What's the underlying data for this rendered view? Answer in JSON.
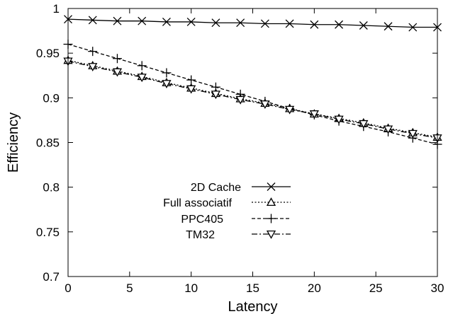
{
  "chart_data": {
    "type": "line",
    "title": "",
    "xlabel": "Latency",
    "ylabel": "Efficiency",
    "xlim": [
      0,
      30
    ],
    "ylim": [
      0.7,
      1
    ],
    "xticks": [
      0,
      5,
      10,
      15,
      20,
      25,
      30
    ],
    "yticks": [
      0.7,
      0.75,
      0.8,
      0.85,
      0.9,
      0.95,
      1
    ],
    "ytick_labels": [
      "0.7",
      "0.75",
      "0.8",
      "0.85",
      "0.9",
      "0.95",
      "1"
    ],
    "grid": false,
    "legend_position": "center",
    "x": [
      0,
      2,
      4,
      6,
      8,
      10,
      12,
      14,
      16,
      18,
      20,
      22,
      24,
      26,
      28,
      30
    ],
    "series": [
      {
        "name": "2D Cache",
        "marker": "x",
        "dash": "solid",
        "values": [
          0.988,
          0.987,
          0.986,
          0.986,
          0.985,
          0.985,
          0.984,
          0.984,
          0.983,
          0.983,
          0.982,
          0.982,
          0.981,
          0.98,
          0.979,
          0.979
        ]
      },
      {
        "name": "Full associatif",
        "marker": "triangle-up",
        "dash": "dotted",
        "values": [
          0.942,
          0.936,
          0.93,
          0.924,
          0.917,
          0.911,
          0.905,
          0.899,
          0.894,
          0.888,
          0.882,
          0.877,
          0.872,
          0.866,
          0.861,
          0.856
        ]
      },
      {
        "name": "PPC405",
        "marker": "plus",
        "dash": "dashed",
        "values": [
          0.96,
          0.952,
          0.944,
          0.936,
          0.928,
          0.92,
          0.912,
          0.904,
          0.896,
          0.888,
          0.881,
          0.874,
          0.868,
          0.862,
          0.855,
          0.848
        ]
      },
      {
        "name": "TM32",
        "marker": "triangle-down",
        "dash": "dashdot",
        "values": [
          0.941,
          0.935,
          0.929,
          0.923,
          0.916,
          0.91,
          0.904,
          0.898,
          0.893,
          0.887,
          0.882,
          0.876,
          0.871,
          0.865,
          0.86,
          0.855
        ]
      }
    ]
  }
}
